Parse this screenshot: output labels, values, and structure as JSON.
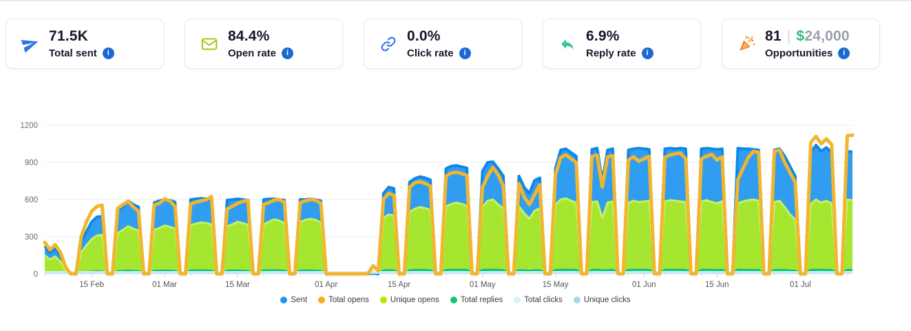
{
  "colors": {
    "info_icon_blue": "#1b69d3",
    "money_green": "#2ebd77",
    "money_gray": "#9aa0ac",
    "card_border": "#e9e9f0"
  },
  "info_icon_glyph": "i",
  "cards": [
    {
      "icon": "paper-plane-icon",
      "value": "71.5K",
      "label": "Total sent"
    },
    {
      "icon": "envelope-icon",
      "value": "84.4%",
      "label": "Open rate"
    },
    {
      "icon": "link-icon",
      "value": "0.0%",
      "label": "Click rate"
    },
    {
      "icon": "reply-arrow-icon",
      "value": "6.9%",
      "label": "Reply rate"
    },
    {
      "icon": "party-popper-icon",
      "value": "81",
      "separator": "|",
      "currency_symbol": "$",
      "secondary_value": "24,000",
      "label": "Opportunities"
    }
  ],
  "chart_data": {
    "type": "area",
    "title": "",
    "xlabel": "",
    "ylabel": "",
    "x_start": "06 Feb",
    "x_end": "11 Jul",
    "x_unit": "day",
    "ylim": [
      0,
      1200
    ],
    "yticks": [
      0,
      300,
      600,
      900,
      1200
    ],
    "grid": true,
    "legend_position": "bottom",
    "xticks": [
      {
        "label": "15 Feb",
        "i": 9
      },
      {
        "label": "01 Mar",
        "i": 23
      },
      {
        "label": "15 Mar",
        "i": 37
      },
      {
        "label": "01 Apr",
        "i": 54
      },
      {
        "label": "15 Apr",
        "i": 68
      },
      {
        "label": "01 May",
        "i": 84
      },
      {
        "label": "15 May",
        "i": 98
      },
      {
        "label": "01 Jun",
        "i": 115
      },
      {
        "label": "15 Jun",
        "i": 129
      },
      {
        "label": "01 Jul",
        "i": 145
      }
    ],
    "series": [
      {
        "name": "Sent",
        "kind": "area",
        "fill": "#319df1",
        "stroke": "#0d87e9",
        "stroke_width": 4,
        "dot": "#2196f3",
        "values": [
          225,
          170,
          205,
          150,
          45,
          0,
          0,
          260,
          340,
          420,
          460,
          465,
          0,
          0,
          510,
          545,
          590,
          560,
          540,
          0,
          0,
          575,
          590,
          600,
          595,
          580,
          0,
          0,
          600,
          605,
          610,
          605,
          600,
          0,
          0,
          595,
          600,
          605,
          600,
          595,
          0,
          0,
          600,
          605,
          605,
          600,
          595,
          0,
          0,
          600,
          600,
          605,
          600,
          590,
          0,
          0,
          0,
          0,
          0,
          0,
          0,
          0,
          0,
          5,
          0,
          650,
          700,
          690,
          0,
          0,
          740,
          770,
          785,
          775,
          760,
          0,
          0,
          850,
          870,
          875,
          865,
          855,
          0,
          0,
          830,
          900,
          905,
          850,
          790,
          0,
          0,
          790,
          700,
          650,
          755,
          775,
          0,
          0,
          850,
          1000,
          1010,
          980,
          950,
          0,
          0,
          1005,
          1015,
          750,
          1000,
          1010,
          0,
          0,
          1000,
          1010,
          1015,
          1010,
          1005,
          0,
          0,
          1010,
          1015,
          1010,
          1015,
          1010,
          0,
          0,
          1010,
          1015,
          1010,
          1005,
          1010,
          0,
          0,
          1015,
          1010,
          1010,
          1005,
          1000,
          0,
          0,
          1000,
          1010,
          950,
          870,
          790,
          0,
          0,
          980,
          1040,
          990,
          1020,
          980,
          0,
          0,
          990,
          985
        ]
      },
      {
        "name": "Total opens",
        "kind": "line",
        "line": "#f1b52f",
        "dot": "#fbab18",
        "values": [
          255,
          195,
          235,
          175,
          55,
          0,
          0,
          300,
          420,
          505,
          545,
          555,
          0,
          0,
          530,
          560,
          585,
          540,
          505,
          0,
          0,
          555,
          570,
          605,
          590,
          545,
          0,
          0,
          565,
          580,
          590,
          600,
          625,
          0,
          0,
          525,
          545,
          570,
          585,
          595,
          0,
          0,
          560,
          575,
          595,
          600,
          580,
          0,
          0,
          575,
          590,
          600,
          595,
          570,
          0,
          0,
          0,
          0,
          0,
          0,
          0,
          0,
          0,
          65,
          25,
          605,
          650,
          635,
          0,
          0,
          700,
          735,
          745,
          730,
          710,
          0,
          0,
          790,
          815,
          820,
          810,
          795,
          0,
          0,
          700,
          790,
          860,
          800,
          710,
          0,
          0,
          730,
          620,
          560,
          640,
          720,
          0,
          0,
          800,
          940,
          960,
          930,
          900,
          0,
          0,
          950,
          960,
          700,
          945,
          955,
          0,
          0,
          920,
          945,
          910,
          930,
          950,
          0,
          0,
          940,
          960,
          970,
          975,
          930,
          0,
          0,
          930,
          950,
          965,
          920,
          945,
          0,
          0,
          760,
          850,
          940,
          990,
          980,
          0,
          0,
          990,
          1000,
          900,
          820,
          740,
          0,
          0,
          1060,
          1110,
          1050,
          1090,
          1045,
          0,
          0,
          1115,
          1120
        ]
      },
      {
        "name": "Unique opens",
        "kind": "area",
        "fill": "#a5e630",
        "stroke": "#c6f164",
        "stroke_width": 3,
        "dot": "#aeea00",
        "values": [
          150,
          115,
          140,
          100,
          30,
          0,
          0,
          175,
          230,
          280,
          310,
          315,
          0,
          0,
          330,
          355,
          385,
          365,
          350,
          0,
          0,
          355,
          370,
          390,
          380,
          365,
          0,
          0,
          395,
          405,
          415,
          410,
          400,
          0,
          0,
          385,
          400,
          420,
          410,
          395,
          0,
          0,
          400,
          420,
          440,
          430,
          410,
          0,
          0,
          420,
          435,
          445,
          435,
          415,
          0,
          0,
          0,
          0,
          0,
          0,
          0,
          0,
          0,
          20,
          8,
          450,
          480,
          470,
          0,
          0,
          500,
          525,
          540,
          530,
          515,
          0,
          0,
          545,
          565,
          575,
          565,
          550,
          0,
          0,
          540,
          590,
          600,
          560,
          530,
          0,
          0,
          545,
          490,
          445,
          510,
          530,
          0,
          0,
          560,
          600,
          610,
          590,
          575,
          0,
          0,
          580,
          585,
          450,
          575,
          585,
          0,
          0,
          575,
          590,
          580,
          585,
          590,
          0,
          0,
          585,
          595,
          590,
          585,
          580,
          0,
          0,
          585,
          595,
          580,
          570,
          585,
          0,
          0,
          570,
          585,
          595,
          600,
          590,
          0,
          0,
          580,
          590,
          540,
          480,
          440,
          0,
          0,
          565,
          600,
          575,
          590,
          570,
          0,
          0,
          600,
          595
        ]
      },
      {
        "name": "Total replies",
        "kind": "area",
        "fill": "#16ca8c",
        "stroke": "#0abf7e",
        "stroke_width": 2,
        "dot": "#10c86e",
        "values": [
          12,
          9,
          11,
          9,
          6,
          5,
          5,
          15,
          18,
          20,
          22,
          22,
          10,
          8,
          25,
          26,
          28,
          26,
          25,
          12,
          10,
          28,
          28,
          30,
          28,
          26,
          12,
          10,
          30,
          30,
          32,
          30,
          28,
          13,
          11,
          28,
          30,
          30,
          28,
          26,
          12,
          10,
          30,
          30,
          32,
          30,
          28,
          13,
          11,
          30,
          30,
          30,
          28,
          26,
          12,
          10,
          8,
          7,
          8,
          7,
          8,
          6,
          6,
          8,
          7,
          30,
          32,
          30,
          13,
          11,
          32,
          34,
          35,
          34,
          32,
          14,
          12,
          34,
          35,
          36,
          35,
          34,
          14,
          12,
          35,
          36,
          36,
          34,
          32,
          14,
          12,
          33,
          30,
          28,
          31,
          32,
          13,
          11,
          34,
          36,
          36,
          35,
          34,
          14,
          12,
          34,
          36,
          30,
          34,
          35,
          14,
          12,
          35,
          35,
          36,
          35,
          34,
          14,
          12,
          35,
          36,
          35,
          36,
          35,
          14,
          12,
          35,
          36,
          35,
          34,
          35,
          14,
          12,
          36,
          35,
          35,
          34,
          34,
          14,
          12,
          34,
          35,
          33,
          30,
          28,
          13,
          11,
          35,
          36,
          34,
          35,
          33,
          14,
          12,
          35,
          34
        ]
      },
      {
        "name": "Total clicks",
        "kind": "band",
        "fill": "#d9f1f8",
        "dot": "#d9f1f9",
        "constant": 22
      },
      {
        "name": "Unique clicks",
        "kind": "band",
        "fill": "#bee8f3",
        "dot": "#a5d8ea",
        "constant": 13
      }
    ]
  }
}
